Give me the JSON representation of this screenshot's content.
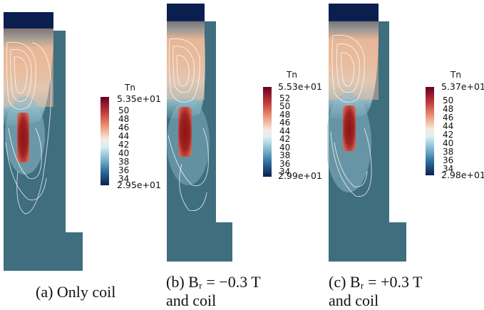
{
  "colorbar_title": "Tn",
  "panels": [
    {
      "id": "a",
      "caption_line1": "(a) Only coil",
      "caption_line2": "",
      "cb_max": "5.35e+01",
      "cb_min": "2.95e+01",
      "cb_ticks": [
        "50",
        "48",
        "46",
        "44",
        "42",
        "40",
        "38",
        "36",
        "34"
      ]
    },
    {
      "id": "b",
      "caption_line1": "(b) Bᵣ = −0.3 T",
      "caption_line2": "and coil",
      "cb_max": "5.53e+01",
      "cb_min": "2.99e+01",
      "cb_ticks": [
        "52",
        "50",
        "48",
        "46",
        "44",
        "42",
        "40",
        "38",
        "36",
        "34"
      ]
    },
    {
      "id": "c",
      "caption_line1": "(c) Bᵣ = +0.3 T",
      "caption_line2": "and coil",
      "cb_max": "5.37e+01",
      "cb_min": "2.98e+01",
      "cb_ticks": [
        "50",
        "48",
        "46",
        "44",
        "42",
        "40",
        "38",
        "36",
        "34"
      ]
    }
  ],
  "colors": {
    "hot": "#8c1d1d",
    "warm": "#e5b08f",
    "neutral": "#f2f1ee",
    "cool": "#9fc9d8",
    "fluid": "#3f6e7f",
    "cold": "#0b1f4e"
  }
}
